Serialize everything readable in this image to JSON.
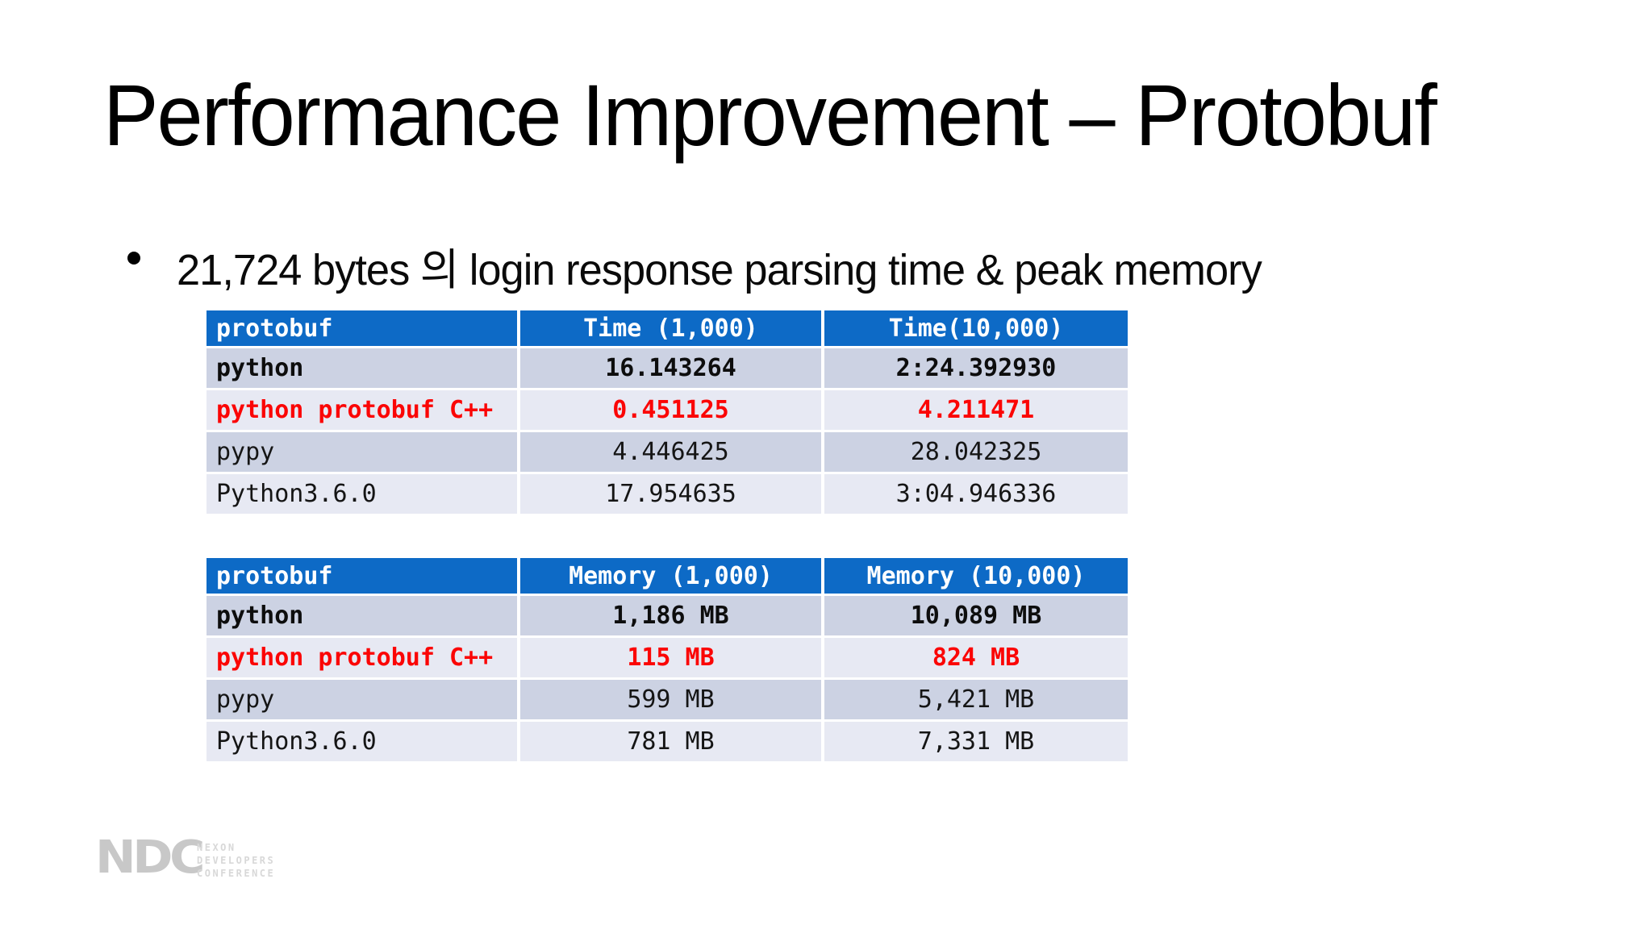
{
  "slide": {
    "title": "Performance Improvement – Protobuf",
    "bullet": "21,724 bytes 의 login response parsing time & peak memory"
  },
  "tables": [
    {
      "name": "time-table",
      "headers": [
        "protobuf",
        "Time (1,000)",
        "Time(10,000)"
      ],
      "rows": [
        {
          "label": "python",
          "values": [
            "16.143264",
            "2:24.392930"
          ],
          "style": "bold"
        },
        {
          "label": "python protobuf C++",
          "values": [
            "0.451125",
            "4.211471"
          ],
          "style": "highlight-red"
        },
        {
          "label": "pypy",
          "values": [
            "4.446425",
            "28.042325"
          ],
          "style": "normal"
        },
        {
          "label": "Python3.6.0",
          "values": [
            "17.954635",
            "3:04.946336"
          ],
          "style": "normal"
        }
      ]
    },
    {
      "name": "memory-table",
      "headers": [
        "protobuf",
        "Memory (1,000)",
        "Memory (10,000)"
      ],
      "rows": [
        {
          "label": "python",
          "values": [
            "1,186 MB",
            "10,089 MB"
          ],
          "style": "bold"
        },
        {
          "label": "python protobuf C++",
          "values": [
            "115 MB",
            "824 MB"
          ],
          "style": "highlight-red"
        },
        {
          "label": "pypy",
          "values": [
            "599 MB",
            "5,421 MB"
          ],
          "style": "normal"
        },
        {
          "label": "Python3.6.0",
          "values": [
            "781 MB",
            "7,331 MB"
          ],
          "style": "normal"
        }
      ]
    }
  ],
  "chart_data": [
    {
      "type": "table",
      "title": "protobuf parsing time",
      "categories": [
        "python",
        "python protobuf C++",
        "pypy",
        "Python3.6.0"
      ],
      "series": [
        {
          "name": "Time (1,000)",
          "values": [
            "16.143264",
            "0.451125",
            "4.446425",
            "17.954635"
          ]
        },
        {
          "name": "Time(10,000)",
          "values": [
            "2:24.392930",
            "4.211471",
            "28.042325",
            "3:04.946336"
          ]
        }
      ]
    },
    {
      "type": "table",
      "title": "protobuf peak memory",
      "categories": [
        "python",
        "python protobuf C++",
        "pypy",
        "Python3.6.0"
      ],
      "series": [
        {
          "name": "Memory (1,000)",
          "values": [
            "1,186 MB",
            "115 MB",
            "599 MB",
            "781 MB"
          ]
        },
        {
          "name": "Memory (10,000)",
          "values": [
            "10,089 MB",
            "824 MB",
            "5,421 MB",
            "7,331 MB"
          ]
        }
      ]
    }
  ],
  "footer_logo": {
    "acronym": "NDC",
    "lines": [
      "NEXON",
      "DEVELOPERS",
      "CONFERENCE"
    ]
  },
  "colors": {
    "header_blue": "#0d6ac6",
    "row_dark": "#ccd2e3",
    "row_light": "#e7e9f3",
    "highlight_red": "#fb0505",
    "text_black": "#111111",
    "logo_gray": "#c8c8c8",
    "logo_text_gray": "#d8d8d8",
    "grid_white": "#ffffff"
  }
}
